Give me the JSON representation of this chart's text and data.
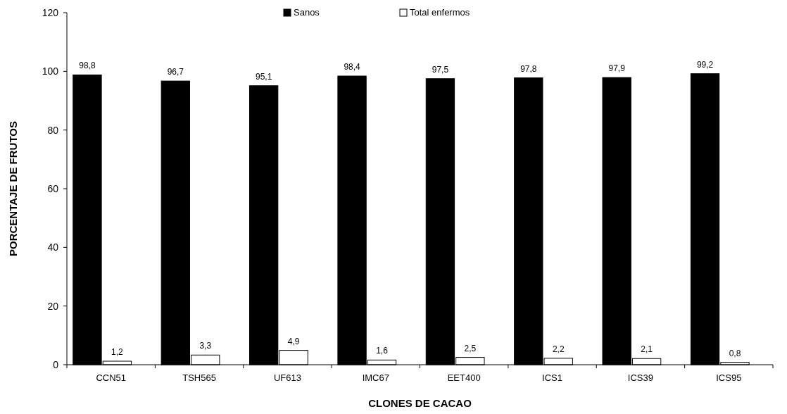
{
  "chart_data": {
    "type": "bar",
    "xlabel": "CLONES DE CACAO",
    "ylabel": "PORCENTAJE DE FRUTOS",
    "categories": [
      "CCN51",
      "TSH565",
      "UF613",
      "IMC67",
      "EET400",
      "ICS1",
      "ICS39",
      "ICS95"
    ],
    "series": [
      {
        "name": "Sanos",
        "color": "#000000",
        "values": [
          98.8,
          96.7,
          95.1,
          98.4,
          97.5,
          97.8,
          97.9,
          99.2
        ],
        "value_labels": [
          "98,8",
          "96,7",
          "95,1",
          "98,4",
          "97,5",
          "97,8",
          "97,9",
          "99,2"
        ]
      },
      {
        "name": "Total enfermos",
        "color": "#ffffff",
        "values": [
          1.2,
          3.3,
          4.9,
          1.6,
          2.5,
          2.2,
          2.1,
          0.8
        ],
        "value_labels": [
          "1,2",
          "3,3",
          "4,9",
          "1,6",
          "2,5",
          "2,2",
          "2,1",
          "0,8"
        ]
      }
    ],
    "ylim": [
      0,
      120
    ],
    "yticks": [
      0,
      20,
      40,
      60,
      80,
      100,
      120
    ],
    "legend": "top",
    "grid": false
  }
}
